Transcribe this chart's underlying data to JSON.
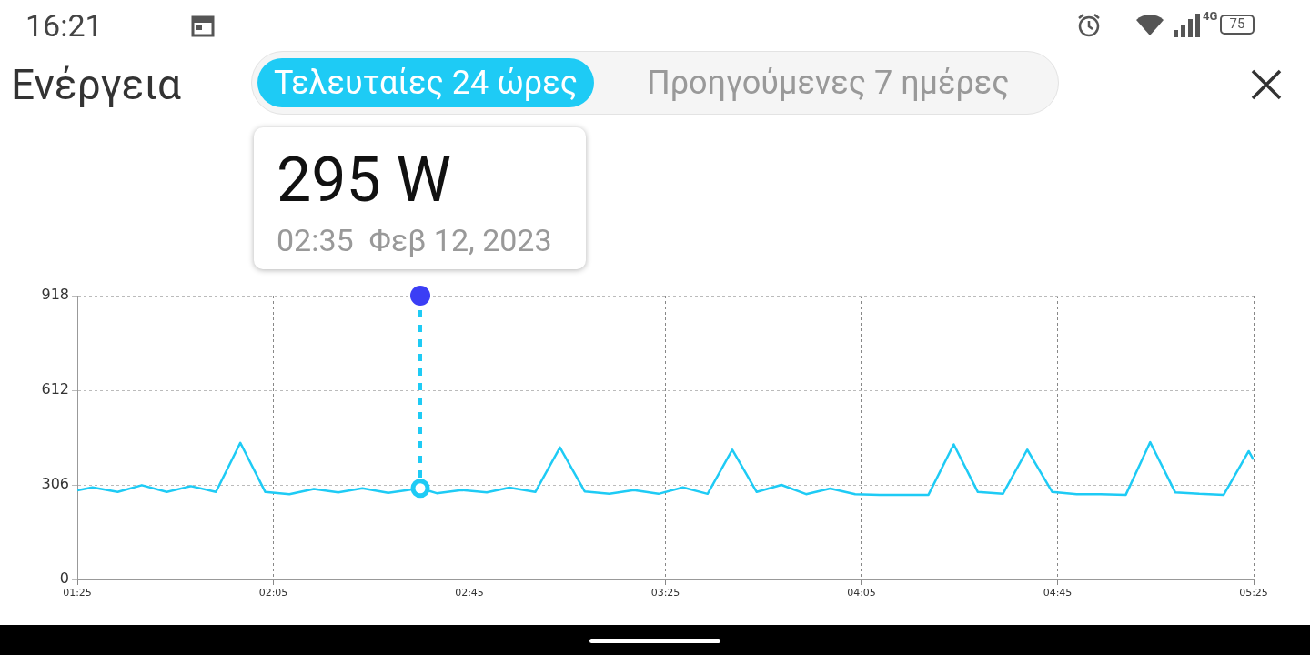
{
  "chart_data": {
    "type": "line",
    "title": "Ενέργεια",
    "annotations": [
      "16:21",
      "75",
      "4G",
      "Τελευταίες 24 ώρες",
      "Προηγούμενες 7 ημέρες",
      "295 W",
      "02:35  Φεβ 12, 2023"
    ],
    "series": [
      {
        "color": "#1ecbf5",
        "x": [
          1.417,
          1.468,
          1.554,
          1.636,
          1.721,
          1.803,
          1.888,
          1.971,
          2.056,
          2.138,
          2.221,
          2.304,
          2.386,
          2.474,
          2.583,
          2.639,
          2.723,
          2.809,
          2.886,
          2.974,
          3.058,
          3.142,
          3.226,
          3.309,
          3.393,
          3.476,
          3.56,
          3.644,
          3.727,
          3.811,
          3.895,
          3.977,
          4.062,
          4.145,
          4.229,
          4.311,
          4.397,
          4.479,
          4.564,
          4.647,
          4.732,
          4.815,
          4.897,
          4.982,
          5.065,
          5.15,
          5.232,
          5.315,
          5.4,
          5.416
        ],
        "values": [
          288,
          298,
          283,
          305,
          283,
          302,
          283,
          442,
          283,
          276,
          293,
          282,
          295,
          280,
          295,
          279,
          289,
          282,
          297,
          283,
          427,
          285,
          277,
          289,
          277,
          298,
          277,
          420,
          283,
          306,
          276,
          294,
          276,
          274,
          274,
          274,
          437,
          283,
          277,
          420,
          283,
          276,
          276,
          274,
          444,
          282,
          277,
          274,
          415,
          388
        ]
      }
    ],
    "xlim": [
      1.4167,
      5.4167
    ],
    "xticks": [
      {
        "value": 1.4167,
        "label": "01:25"
      },
      {
        "value": 2.0833,
        "label": "02:05"
      },
      {
        "value": 2.75,
        "label": "02:45"
      },
      {
        "value": 3.4167,
        "label": "03:25"
      },
      {
        "value": 4.0833,
        "label": "04:05"
      },
      {
        "value": 4.75,
        "label": "04:45"
      },
      {
        "value": 5.4167,
        "label": "05:25"
      }
    ],
    "ylim": [
      0,
      918
    ],
    "yticks": [
      0,
      306,
      612,
      918
    ],
    "grid": true,
    "marker": "none",
    "line_style": "solid",
    "legend": false,
    "ref_lines": [
      {
        "axis": "x",
        "value": 2.583,
        "color": "#1ecbf5",
        "line_style": "dashed"
      }
    ]
  }
}
